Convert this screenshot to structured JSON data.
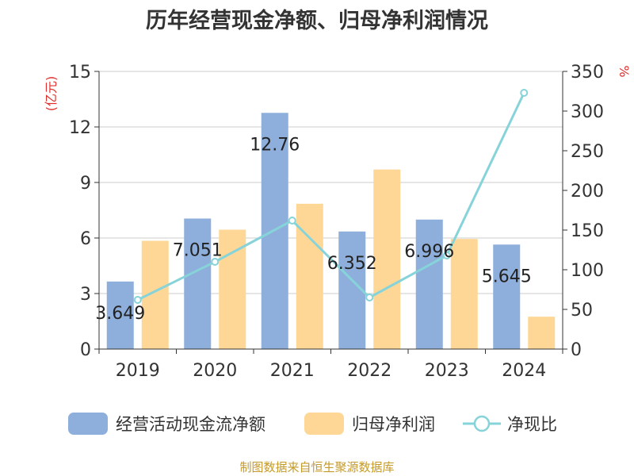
{
  "chart_data": {
    "type": "bar+line",
    "title": "历年经营现金净额、归母净利润情况",
    "categories": [
      "2019",
      "2020",
      "2021",
      "2022",
      "2023",
      "2024"
    ],
    "series": [
      {
        "name": "经营活动现金流净额",
        "kind": "bar",
        "axis": "left",
        "values": [
          3.649,
          7.051,
          12.76,
          6.352,
          6.996,
          5.645
        ],
        "labels": [
          "3.649",
          "7.051",
          "12.76",
          "6.352",
          "6.996",
          "5.645"
        ],
        "color": "#8eaedb"
      },
      {
        "name": "归母净利润",
        "kind": "bar",
        "axis": "left",
        "values": [
          5.85,
          6.45,
          7.85,
          9.7,
          5.95,
          1.75
        ],
        "color": "#fed797"
      },
      {
        "name": "净现比",
        "kind": "line",
        "axis": "right",
        "values": [
          62,
          110,
          162,
          65,
          118,
          323
        ],
        "color": "#86d3d9"
      }
    ],
    "y_left": {
      "label": "(亿元)",
      "min": 0,
      "max": 15,
      "ticks": [
        0,
        3,
        6,
        9,
        12,
        15
      ]
    },
    "y_right": {
      "label": "%",
      "min": 0,
      "max": 350,
      "ticks": [
        0,
        50,
        100,
        150,
        200,
        250,
        300,
        350
      ]
    },
    "grid": true,
    "legend_position": "bottom"
  },
  "source_note": "制图数据来自恒生聚源数据库"
}
